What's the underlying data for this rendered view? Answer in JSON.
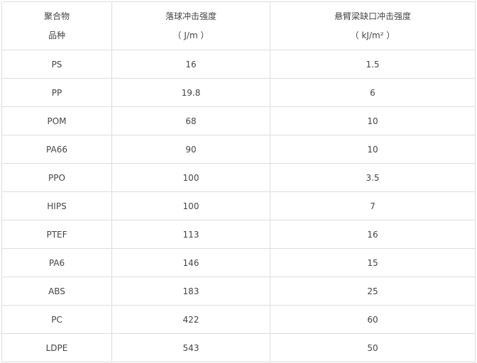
{
  "table": {
    "headers": [
      {
        "line1": "聚合物",
        "line2": "品种"
      },
      {
        "line1": "落球冲击强度",
        "line2": "（ J/m ）"
      },
      {
        "line1": "悬臂梁缺口冲击强度",
        "line2": "（ kJ/m² ）"
      }
    ],
    "rows": [
      [
        "PS",
        "16",
        "1.5"
      ],
      [
        "PP",
        "19.8",
        "6"
      ],
      [
        "POM",
        "68",
        "10"
      ],
      [
        "PA66",
        "90",
        "10"
      ],
      [
        "PPO",
        "100",
        "3.5"
      ],
      [
        "HIPS",
        "100",
        "7"
      ],
      [
        "PTEF",
        "113",
        "16"
      ],
      [
        "PA6",
        "146",
        "15"
      ],
      [
        "ABS",
        "183",
        "25"
      ],
      [
        "PC",
        "422",
        "60"
      ],
      [
        "LDPE",
        "543",
        "50"
      ]
    ]
  }
}
